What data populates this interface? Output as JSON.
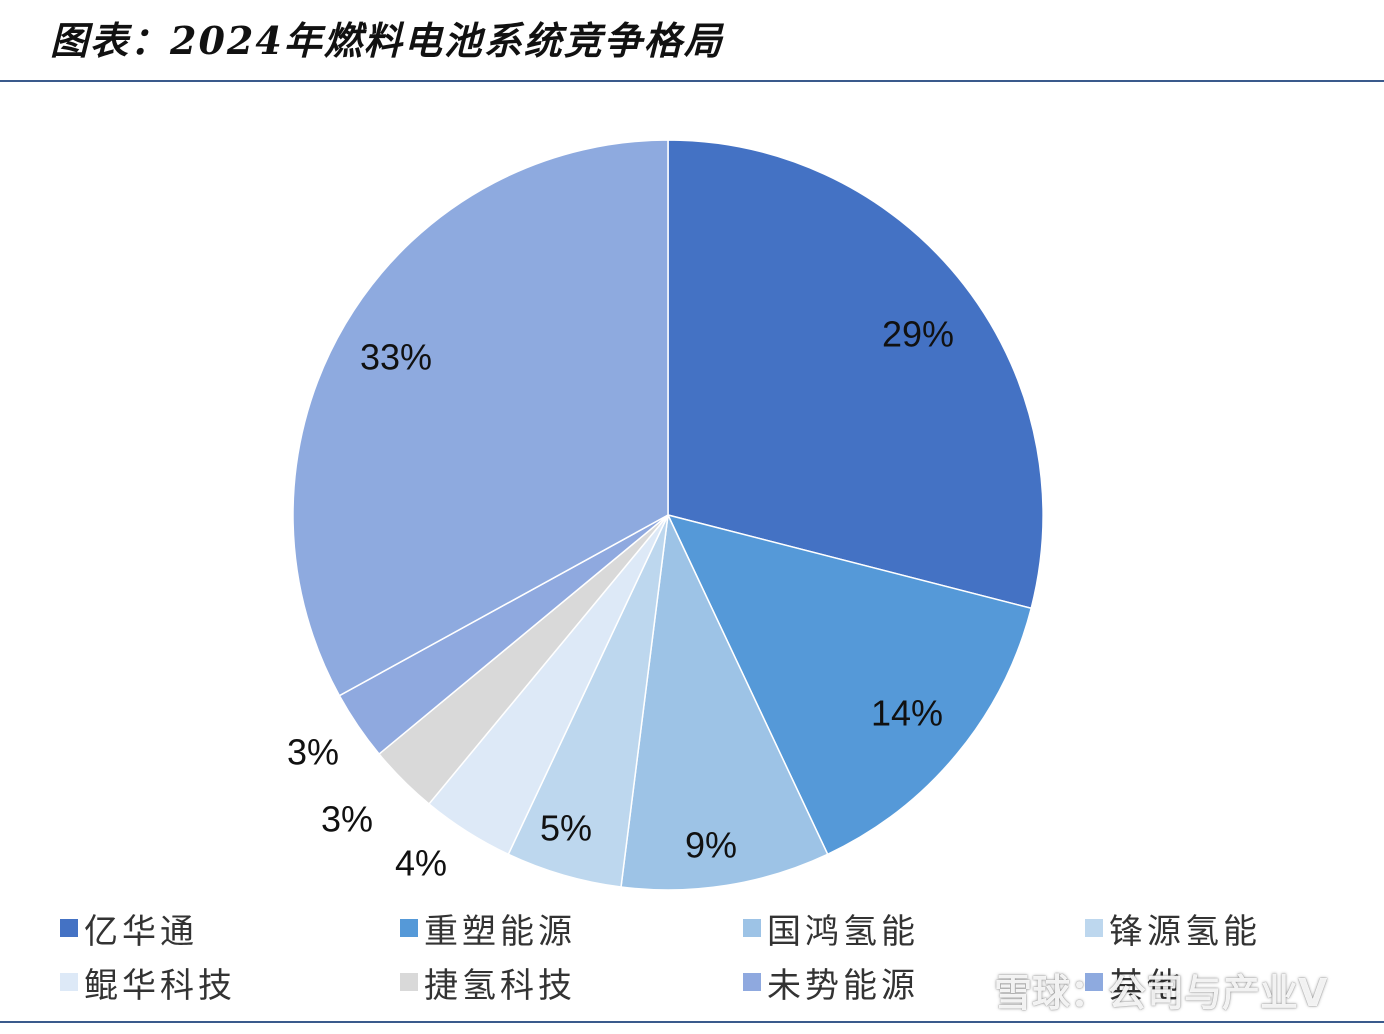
{
  "header": {
    "title": "图表：2024年燃料电池系统竞争格局"
  },
  "chart_data": {
    "type": "pie",
    "title": "",
    "start_angle": "12 o'clock, clockwise",
    "slices": [
      {
        "name": "亿华通",
        "value": 29,
        "label": "29%",
        "color": "#4472c4"
      },
      {
        "name": "重塑能源",
        "value": 14,
        "label": "14%",
        "color": "#5599d8"
      },
      {
        "name": "国鸿氢能",
        "value": 9,
        "label": "9%",
        "color": "#9dc3e6"
      },
      {
        "name": "锋源氢能",
        "value": 5,
        "label": "5%",
        "color": "#bdd7ee"
      },
      {
        "name": "鲲华科技",
        "value": 4,
        "label": "4%",
        "color": "#dde9f7"
      },
      {
        "name": "捷氢科技",
        "value": 3,
        "label": "3%",
        "color": "#d9d9d9"
      },
      {
        "name": "未势能源",
        "value": 3,
        "label": "3%",
        "color": "#8fa9df"
      },
      {
        "name": "其他",
        "value": 33,
        "label": "33%",
        "color": "#8eaadf"
      }
    ],
    "legend": {
      "position": "bottom",
      "columns": 4
    }
  },
  "watermark": {
    "text": "雪球：公司与产业V"
  }
}
